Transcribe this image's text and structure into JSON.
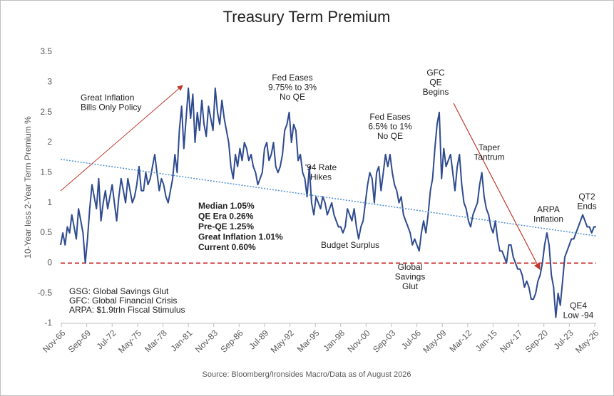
{
  "chart_data": {
    "type": "line",
    "title": "Treasury Term Premium",
    "y_label": "10-Year less 2-Year Term Premium %",
    "source": "Source: Bloomberg/Ironsides Macro/Data as of August 2026",
    "color": "#2f4b8f",
    "trend_color": "#4f8fd0",
    "reference_color": "#c00000",
    "reference_line": 0,
    "trendline": [
      1.72,
      0.45
    ],
    "xlim": [
      1966.75,
      2026.5
    ],
    "ylim": [
      -1,
      3.5
    ],
    "yticks": [
      3.5,
      3,
      2.5,
      2,
      1.5,
      1,
      0.5,
      0,
      -0.5,
      -1
    ],
    "xticks": [
      {
        "value": 1966.833,
        "label": "Nov-66"
      },
      {
        "value": 1969.667,
        "label": "Sep-69"
      },
      {
        "value": 1972.5,
        "label": "Jul-72"
      },
      {
        "value": 1975.333,
        "label": "May-75"
      },
      {
        "value": 1978.167,
        "label": "Mar-78"
      },
      {
        "value": 1981.0,
        "label": "Jan-81"
      },
      {
        "value": 1983.833,
        "label": "Nov-83"
      },
      {
        "value": 1986.667,
        "label": "Sep-86"
      },
      {
        "value": 1989.5,
        "label": "Jul-89"
      },
      {
        "value": 1992.333,
        "label": "May-92"
      },
      {
        "value": 1995.167,
        "label": "Mar-95"
      },
      {
        "value": 1998.0,
        "label": "Jan-98"
      },
      {
        "value": 2000.833,
        "label": "Nov-00"
      },
      {
        "value": 2003.667,
        "label": "Sep-03"
      },
      {
        "value": 2006.5,
        "label": "Jul-06"
      },
      {
        "value": 2009.333,
        "label": "May-09"
      },
      {
        "value": 2012.167,
        "label": "Mar-12"
      },
      {
        "value": 2015.0,
        "label": "Jan-15"
      },
      {
        "value": 2017.833,
        "label": "Nov-17"
      },
      {
        "value": 2020.667,
        "label": "Sep-20"
      },
      {
        "value": 2023.5,
        "label": "Jul-23"
      },
      {
        "value": 2026.333,
        "label": "May-26"
      }
    ],
    "x": [
      1966.75,
      1967,
      1967.25,
      1967.5,
      1967.75,
      1968,
      1968.25,
      1968.5,
      1968.75,
      1969,
      1969.25,
      1969.5,
      1969.75,
      1970,
      1970.25,
      1970.5,
      1970.75,
      1971,
      1971.25,
      1971.5,
      1971.75,
      1972,
      1972.25,
      1972.5,
      1972.75,
      1973,
      1973.25,
      1973.5,
      1973.75,
      1974,
      1974.25,
      1974.5,
      1974.75,
      1975,
      1975.25,
      1975.5,
      1975.75,
      1976,
      1976.25,
      1976.5,
      1976.75,
      1977,
      1977.25,
      1977.5,
      1977.75,
      1978,
      1978.25,
      1978.5,
      1978.75,
      1979,
      1979.25,
      1979.5,
      1979.75,
      1980,
      1980.25,
      1980.5,
      1980.75,
      1981,
      1981.25,
      1981.5,
      1981.75,
      1982,
      1982.25,
      1982.5,
      1982.75,
      1983,
      1983.25,
      1983.5,
      1983.75,
      1984,
      1984.25,
      1984.5,
      1984.75,
      1985,
      1985.25,
      1985.5,
      1985.75,
      1986,
      1986.25,
      1986.5,
      1986.75,
      1987,
      1987.25,
      1987.5,
      1987.75,
      1988,
      1988.25,
      1988.5,
      1988.75,
      1989,
      1989.25,
      1989.5,
      1989.75,
      1990,
      1990.25,
      1990.5,
      1990.75,
      1991,
      1991.25,
      1991.5,
      1991.75,
      1992,
      1992.25,
      1992.5,
      1992.75,
      1993,
      1993.25,
      1993.5,
      1993.75,
      1994,
      1994.25,
      1994.5,
      1994.75,
      1995,
      1995.25,
      1995.5,
      1995.75,
      1996,
      1996.25,
      1996.5,
      1996.75,
      1997,
      1997.25,
      1997.5,
      1997.75,
      1998,
      1998.25,
      1998.5,
      1998.75,
      1999,
      1999.25,
      1999.5,
      1999.75,
      2000,
      2000.25,
      2000.5,
      2000.75,
      2001,
      2001.25,
      2001.5,
      2001.75,
      2002,
      2002.25,
      2002.5,
      2002.75,
      2003,
      2003.25,
      2003.5,
      2003.75,
      2004,
      2004.25,
      2004.5,
      2004.75,
      2005,
      2005.25,
      2005.5,
      2005.75,
      2006,
      2006.25,
      2006.5,
      2006.75,
      2007,
      2007.25,
      2007.5,
      2007.75,
      2008,
      2008.25,
      2008.5,
      2008.75,
      2009,
      2009.25,
      2009.5,
      2009.75,
      2010,
      2010.25,
      2010.5,
      2010.75,
      2011,
      2011.25,
      2011.5,
      2011.75,
      2012,
      2012.25,
      2012.5,
      2012.75,
      2013,
      2013.25,
      2013.5,
      2013.75,
      2014,
      2014.25,
      2014.5,
      2014.75,
      2015,
      2015.25,
      2015.5,
      2015.75,
      2016,
      2016.25,
      2016.5,
      2016.75,
      2017,
      2017.25,
      2017.5,
      2017.75,
      2018,
      2018.25,
      2018.5,
      2018.75,
      2019,
      2019.25,
      2019.5,
      2019.75,
      2020,
      2020.25,
      2020.5,
      2020.75,
      2021,
      2021.25,
      2021.5,
      2021.75,
      2022,
      2022.25,
      2022.5,
      2022.75,
      2023,
      2023.25,
      2023.5,
      2023.75,
      2024,
      2024.25,
      2024.5,
      2024.75,
      2025,
      2025.25,
      2025.5,
      2025.75,
      2026,
      2026.25,
      2026.5
    ],
    "values": [
      0.3,
      0.5,
      0.3,
      0.6,
      0.5,
      0.8,
      0.6,
      0.4,
      0.9,
      0.7,
      0.5,
      0.0,
      0.4,
      0.9,
      1.3,
      1.1,
      0.9,
      1.4,
      0.7,
      1.0,
      1.2,
      0.9,
      1.1,
      1.3,
      1.0,
      0.7,
      1.1,
      1.4,
      1.2,
      1.0,
      1.4,
      1.2,
      1.0,
      1.1,
      1.3,
      1.6,
      1.2,
      1.2,
      1.5,
      1.3,
      1.4,
      1.6,
      1.8,
      1.5,
      1.2,
      1.4,
      1.3,
      1.1,
      1.0,
      1.2,
      1.4,
      1.8,
      1.5,
      2.2,
      2.6,
      1.9,
      2.4,
      2.9,
      2.4,
      2.8,
      2.0,
      2.5,
      2.2,
      2.7,
      2.3,
      2.1,
      2.6,
      2.4,
      2.2,
      2.9,
      2.5,
      2.3,
      2.7,
      2.4,
      2.2,
      2.0,
      1.6,
      1.4,
      1.8,
      1.6,
      1.9,
      1.7,
      2.0,
      1.9,
      1.7,
      1.8,
      1.6,
      1.5,
      1.3,
      1.4,
      1.5,
      1.9,
      2.0,
      1.7,
      1.8,
      2.0,
      1.6,
      1.5,
      1.6,
      1.8,
      2.2,
      2.3,
      2.5,
      2.0,
      2.3,
      2.2,
      1.7,
      1.8,
      1.5,
      1.4,
      1.1,
      1.6,
      1.0,
      0.8,
      1.1,
      1.0,
      0.9,
      1.1,
      1.0,
      0.8,
      0.9,
      1.0,
      0.8,
      0.7,
      0.6,
      0.6,
      0.5,
      0.6,
      0.9,
      0.8,
      0.7,
      0.9,
      0.6,
      0.4,
      0.6,
      0.7,
      1.0,
      1.3,
      1.5,
      1.4,
      1.0,
      1.5,
      1.6,
      1.2,
      1.5,
      1.8,
      1.6,
      1.8,
      1.5,
      1.3,
      1.2,
      1.0,
      1.1,
      0.8,
      0.7,
      0.6,
      0.5,
      0.3,
      0.4,
      0.3,
      0.2,
      0.5,
      0.7,
      0.5,
      0.8,
      1.2,
      1.4,
      1.9,
      2.3,
      2.5,
      1.4,
      1.9,
      1.6,
      1.7,
      1.8,
      1.5,
      1.2,
      1.6,
      1.8,
      1.3,
      1.0,
      0.9,
      0.7,
      0.6,
      0.8,
      0.9,
      1.0,
      1.3,
      1.5,
      1.1,
      0.9,
      0.8,
      0.6,
      0.5,
      0.7,
      0.4,
      0.2,
      0.2,
      0.1,
      0.0,
      0.3,
      0.3,
      0.1,
      0.0,
      -0.1,
      -0.1,
      -0.2,
      -0.4,
      -0.3,
      -0.4,
      -0.6,
      -0.6,
      -0.5,
      -0.3,
      -0.2,
      0.0,
      0.3,
      0.5,
      0.3,
      -0.2,
      -0.4,
      -0.9,
      -0.5,
      -0.7,
      -0.3,
      0.1,
      0.2,
      0.3,
      0.4,
      0.4,
      0.5,
      0.6,
      0.7,
      0.8,
      0.7,
      0.6,
      0.6,
      0.5,
      0.6,
      0.6
    ],
    "annotations": [
      {
        "lines": [
          "Great Inflation",
          "Bills Only Policy"
        ]
      },
      {
        "lines": [
          "Fed Eases",
          "9.75% to 3%",
          "No QE"
        ]
      },
      {
        "lines": [
          "'94 Rate",
          "Hikes"
        ]
      },
      {
        "lines": [
          "Fed Eases",
          "6.5% to 1%",
          "No QE"
        ]
      },
      {
        "lines": [
          "GFC",
          "QE",
          "Begins"
        ]
      },
      {
        "lines": [
          "Taper",
          "Tantrum"
        ]
      },
      {
        "lines": [
          "ARPA",
          "Inflation"
        ]
      },
      {
        "lines": [
          "QT2",
          "Ends"
        ]
      },
      {
        "lines": [
          "Budget Surplus"
        ]
      },
      {
        "lines": [
          "Global",
          "Savings",
          "Glut"
        ]
      },
      {
        "lines": [
          "QE4",
          "Low -94"
        ]
      }
    ],
    "stats": [
      "Median 1.05%",
      "QE Era 0.26%",
      "Pre-QE 1.25%",
      "Great Inflation 1.01%",
      "Current 0.60%"
    ],
    "notes": [
      "GSG: Global Savings Glut",
      "GFC: Global Financial Crisis",
      "ARPA: $1.9trln Fiscal Stimulus"
    ]
  }
}
